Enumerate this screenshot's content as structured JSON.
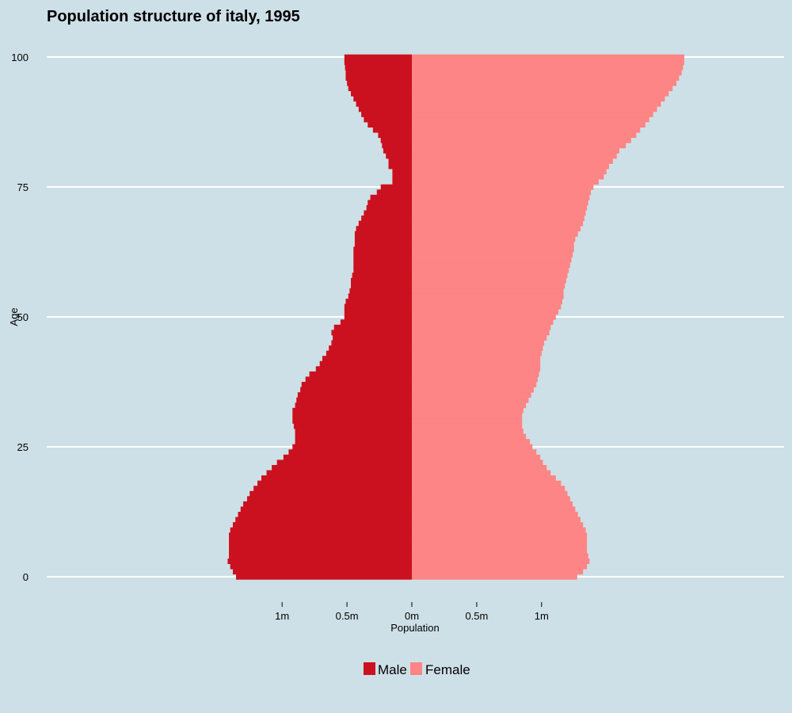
{
  "chart_data": {
    "type": "bar",
    "orientation": "horizontal-pyramid",
    "title": "Population structure of italy, 1995",
    "xlabel": "Population",
    "ylabel": "Age",
    "y_ticks": [
      0,
      25,
      50,
      75,
      100
    ],
    "y_tick_labels": [
      "0",
      "25",
      "50",
      "75",
      "100"
    ],
    "x_ticks": [
      -1000000,
      -500000,
      0,
      500000,
      1000000
    ],
    "x_tick_labels": [
      "1m",
      "0.5m",
      "0m",
      "0.5m",
      "1m"
    ],
    "xlim": [
      -2835000,
      2835000
    ],
    "ylim": [
      0,
      101
    ],
    "grid": "horizontal major gridlines",
    "legend_position": "bottom",
    "colors": {
      "male": "#cb111f",
      "female": "#fe8585",
      "background": "#cee0e7",
      "grid": "#ffffff"
    },
    "ages": [
      0,
      1,
      2,
      3,
      4,
      5,
      6,
      7,
      8,
      9,
      10,
      11,
      12,
      13,
      14,
      15,
      16,
      17,
      18,
      19,
      20,
      21,
      22,
      23,
      24,
      25,
      26,
      27,
      28,
      29,
      30,
      31,
      32,
      33,
      34,
      35,
      36,
      37,
      38,
      39,
      40,
      41,
      42,
      43,
      44,
      45,
      46,
      47,
      48,
      49,
      50,
      51,
      52,
      53,
      54,
      55,
      56,
      57,
      58,
      59,
      60,
      61,
      62,
      63,
      64,
      65,
      66,
      67,
      68,
      69,
      70,
      71,
      72,
      73,
      74,
      75,
      76,
      77,
      78,
      79,
      80,
      81,
      82,
      83,
      84,
      85,
      86,
      87,
      88,
      89,
      90,
      91,
      92,
      93,
      94,
      95,
      96,
      97,
      98,
      99,
      100
    ],
    "series": [
      {
        "name": "Male",
        "values": [
          1355000,
          1380000,
          1400000,
          1420000,
          1410000,
          1410000,
          1410000,
          1410000,
          1410000,
          1400000,
          1380000,
          1360000,
          1340000,
          1320000,
          1300000,
          1270000,
          1250000,
          1220000,
          1190000,
          1160000,
          1120000,
          1080000,
          1040000,
          990000,
          950000,
          920000,
          900000,
          900000,
          900000,
          910000,
          920000,
          920000,
          920000,
          900000,
          890000,
          880000,
          860000,
          850000,
          820000,
          790000,
          740000,
          710000,
          690000,
          660000,
          640000,
          620000,
          610000,
          620000,
          600000,
          550000,
          520000,
          520000,
          520000,
          510000,
          490000,
          480000,
          470000,
          470000,
          460000,
          450000,
          450000,
          450000,
          450000,
          450000,
          440000,
          440000,
          440000,
          430000,
          410000,
          390000,
          370000,
          350000,
          340000,
          320000,
          270000,
          240000,
          150000,
          150000,
          150000,
          180000,
          180000,
          200000,
          220000,
          230000,
          240000,
          260000,
          300000,
          340000,
          370000,
          390000,
          410000,
          430000,
          450000,
          470000,
          490000,
          500000,
          510000,
          510000,
          515000,
          520000,
          520000
        ]
      },
      {
        "name": "Female",
        "values": [
          1275000,
          1320000,
          1350000,
          1370000,
          1360000,
          1350000,
          1350000,
          1350000,
          1350000,
          1340000,
          1320000,
          1300000,
          1280000,
          1260000,
          1240000,
          1220000,
          1200000,
          1180000,
          1150000,
          1110000,
          1070000,
          1040000,
          1010000,
          990000,
          960000,
          930000,
          910000,
          880000,
          860000,
          850000,
          850000,
          850000,
          860000,
          880000,
          900000,
          920000,
          940000,
          960000,
          970000,
          980000,
          990000,
          990000,
          990000,
          1000000,
          1010000,
          1020000,
          1040000,
          1060000,
          1070000,
          1090000,
          1110000,
          1130000,
          1150000,
          1160000,
          1170000,
          1170000,
          1180000,
          1190000,
          1200000,
          1210000,
          1220000,
          1230000,
          1240000,
          1250000,
          1250000,
          1260000,
          1280000,
          1300000,
          1320000,
          1330000,
          1340000,
          1350000,
          1360000,
          1370000,
          1380000,
          1400000,
          1440000,
          1480000,
          1500000,
          1520000,
          1550000,
          1580000,
          1600000,
          1650000,
          1690000,
          1730000,
          1760000,
          1800000,
          1830000,
          1860000,
          1890000,
          1920000,
          1950000,
          1980000,
          2010000,
          2040000,
          2060000,
          2080000,
          2090000,
          2100000,
          2100000
        ]
      }
    ]
  },
  "legend": {
    "items": [
      {
        "label": "Male",
        "color": "#cb111f"
      },
      {
        "label": "Female",
        "color": "#fe8585"
      }
    ]
  }
}
